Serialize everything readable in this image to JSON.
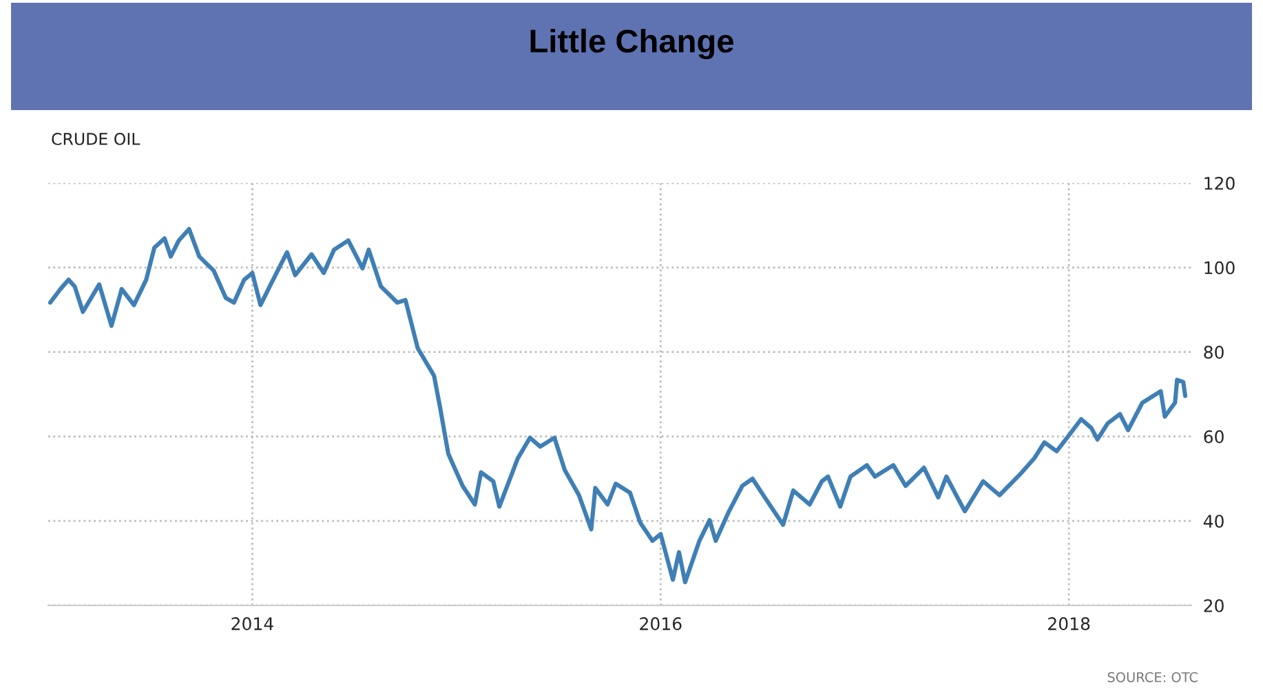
{
  "chart_data": {
    "type": "line",
    "title": "Little Change",
    "subtitle": "CRUDE OIL",
    "annotations": [
      "SOURCE: OTC"
    ],
    "xlim": [
      2013.0,
      2018.6
    ],
    "xticks": [
      2014,
      2016,
      2018
    ],
    "ylim": [
      20,
      120
    ],
    "yticks": [
      20,
      40,
      60,
      80,
      100,
      120
    ],
    "grid": true,
    "legend": false,
    "line_style": "solid",
    "marker": "none",
    "x": [
      2013.01,
      2013.06,
      2013.1,
      2013.13,
      2013.17,
      2013.25,
      2013.31,
      2013.36,
      2013.42,
      2013.48,
      2013.52,
      2013.57,
      2013.6,
      2013.64,
      2013.69,
      2013.74,
      2013.81,
      2013.87,
      2013.91,
      2013.96,
      2014.0,
      2014.04,
      2014.09,
      2014.17,
      2014.21,
      2014.29,
      2014.35,
      2014.4,
      2014.47,
      2014.54,
      2014.57,
      2014.63,
      2014.71,
      2014.75,
      2014.81,
      2014.89,
      2014.92,
      2014.94,
      2014.96,
      2014.98,
      2015.03,
      2015.09,
      2015.12,
      2015.18,
      2015.21,
      2015.3,
      2015.36,
      2015.41,
      2015.48,
      2015.53,
      2015.6,
      2015.66,
      2015.68,
      2015.74,
      2015.78,
      2015.85,
      2015.9,
      2015.96,
      2016.0,
      2016.06,
      2016.09,
      2016.12,
      2016.19,
      2016.24,
      2016.27,
      2016.33,
      2016.4,
      2016.45,
      2016.51,
      2016.6,
      2016.65,
      2016.73,
      2016.79,
      2016.82,
      2016.88,
      2016.93,
      2017.01,
      2017.05,
      2017.14,
      2017.2,
      2017.29,
      2017.36,
      2017.4,
      2017.49,
      2017.58,
      2017.66,
      2017.76,
      2017.83,
      2017.88,
      2017.94,
      2018.01,
      2018.06,
      2018.11,
      2018.14,
      2018.19,
      2018.25,
      2018.29,
      2018.36,
      2018.45,
      2018.47,
      2018.52,
      2018.53,
      2018.56,
      2018.57
    ],
    "series": [
      {
        "color": "#3f7fb5",
        "values": [
          91.7,
          94.9,
          97.1,
          95.5,
          89.5,
          96,
          86.2,
          94.9,
          91.1,
          97.1,
          104.7,
          106.9,
          102.6,
          106.4,
          109.1,
          102.6,
          99.3,
          92.8,
          91.7,
          97.1,
          98.7,
          91.1,
          96,
          103.6,
          98.2,
          103.1,
          98.7,
          104.2,
          106.4,
          99.8,
          104.2,
          95.5,
          91.7,
          92.3,
          80.9,
          74.4,
          66.8,
          61.3,
          55.9,
          53.7,
          48.3,
          43.9,
          51.5,
          49.4,
          43.4,
          54.8,
          59.7,
          57.6,
          59.7,
          52.1,
          46.1,
          38,
          47.8,
          43.9,
          48.8,
          46.7,
          39.6,
          35.3,
          36.9,
          26.1,
          32.6,
          25.5,
          35.3,
          40.2,
          35.3,
          41.8,
          48.3,
          50,
          45.6,
          39.1,
          47.2,
          43.9,
          49.4,
          50.5,
          43.4,
          50.5,
          53.2,
          50.5,
          53.2,
          48.3,
          52.6,
          45.6,
          50.5,
          42.3,
          49.4,
          46.1,
          51,
          54.8,
          58.6,
          56.5,
          60.9,
          64.1,
          62,
          59.3,
          63.1,
          65.3,
          61.5,
          68,
          70.7,
          64.7,
          68,
          73.4,
          72.9,
          69.6
        ]
      }
    ]
  }
}
